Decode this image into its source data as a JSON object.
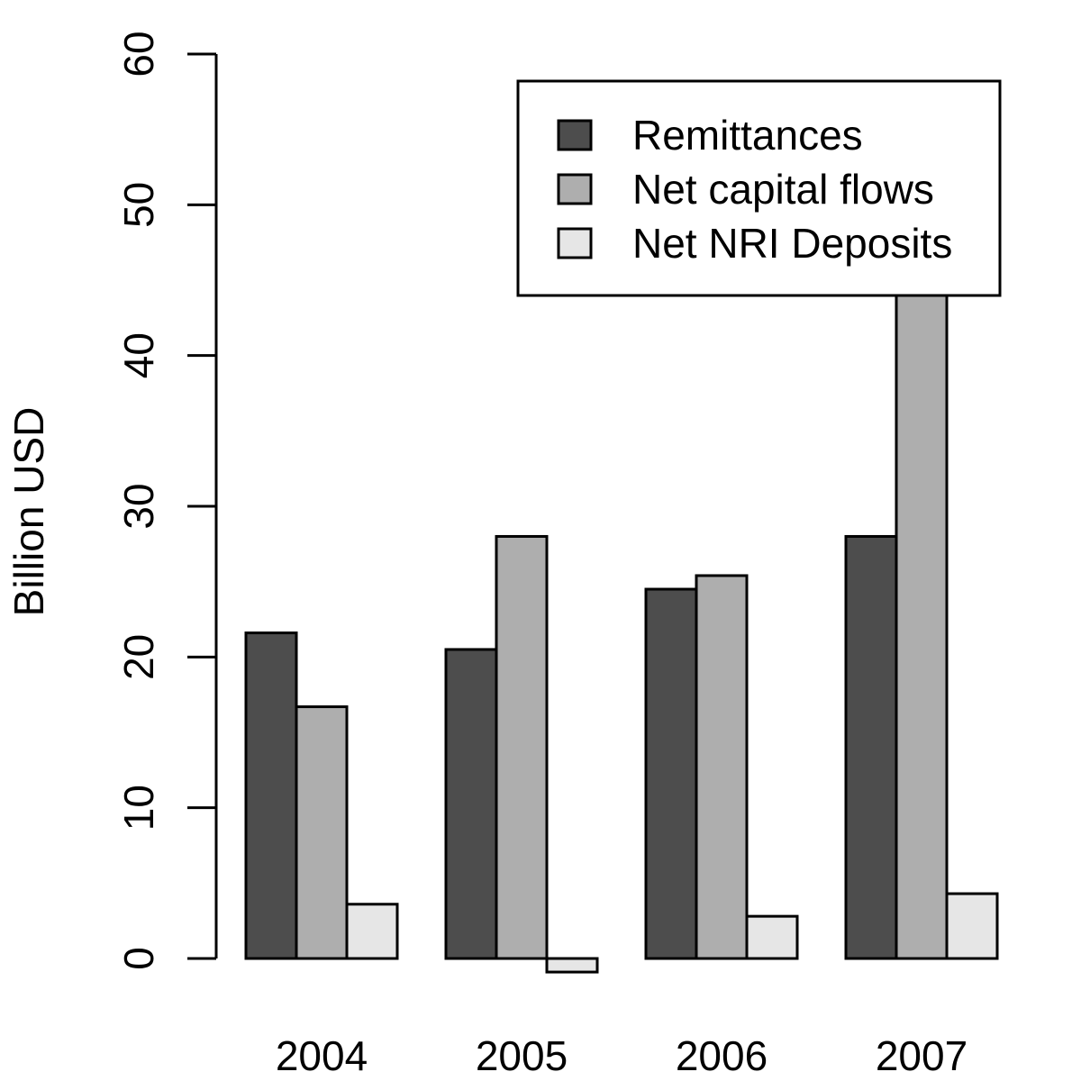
{
  "chart_data": {
    "type": "bar",
    "categories": [
      "2004",
      "2005",
      "2006",
      "2007"
    ],
    "series": [
      {
        "name": "Remittances",
        "values": [
          21.6,
          20.5,
          24.5,
          28.0
        ],
        "color": "#4d4d4d"
      },
      {
        "name": "Net capital flows",
        "values": [
          16.7,
          28.0,
          25.4,
          45.8
        ],
        "color": "#aeaeae"
      },
      {
        "name": "Net NRI Deposits",
        "values": [
          3.6,
          -0.9,
          2.8,
          4.3
        ],
        "color": "#e6e6e6"
      }
    ],
    "ylabel": "Billion USD",
    "xlabel": "",
    "title": "",
    "ylim": [
      0,
      60
    ],
    "yticks": [
      0,
      10,
      20,
      30,
      40,
      50,
      60
    ],
    "legend_position": "top-right",
    "grid": false
  }
}
